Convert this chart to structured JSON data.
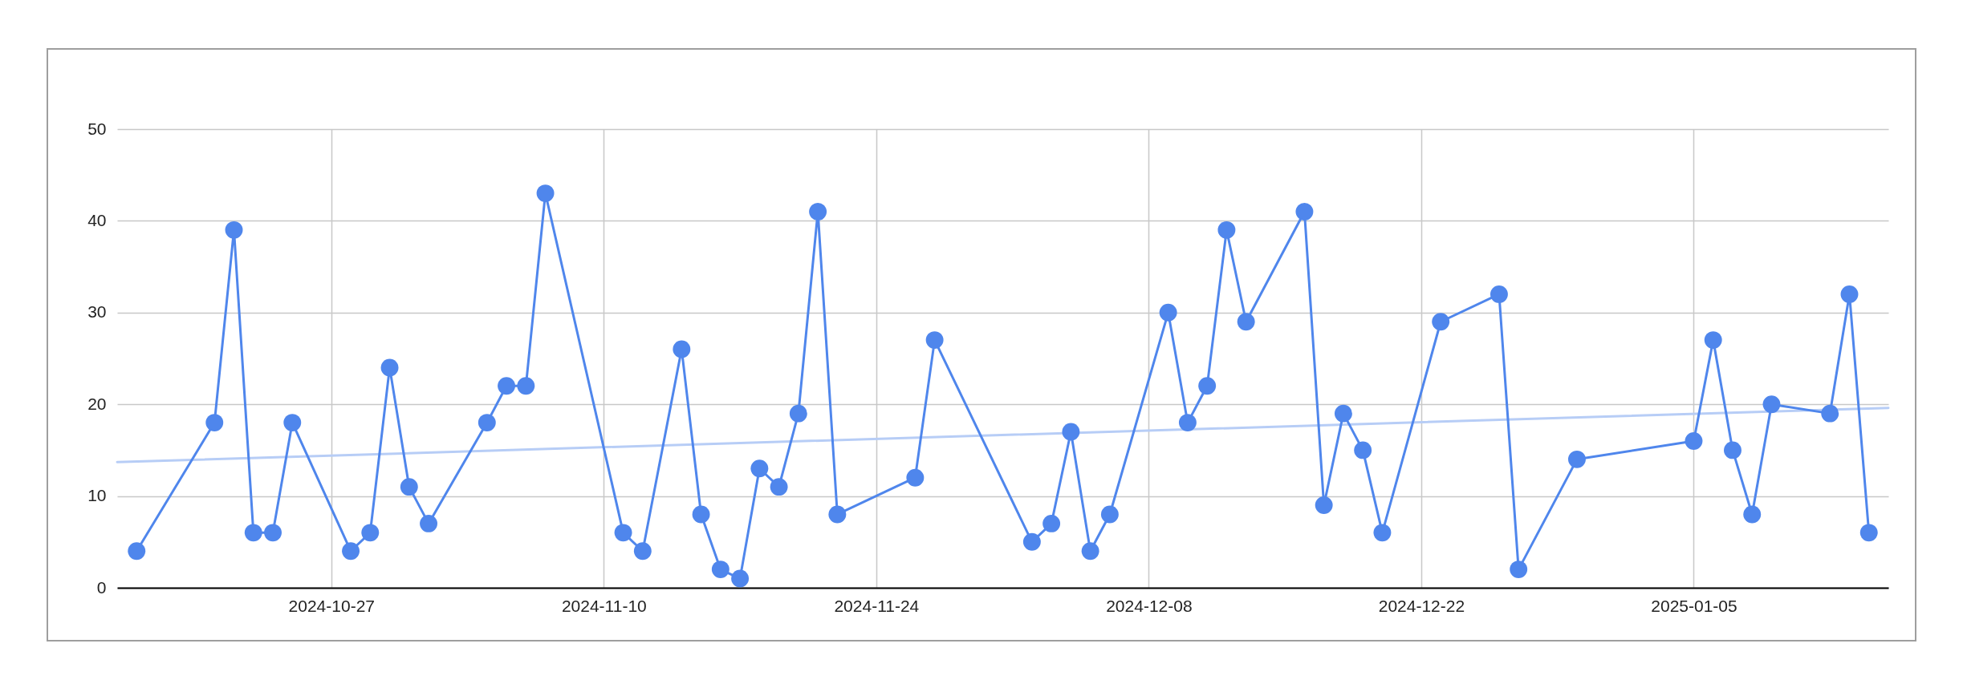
{
  "chart_data": {
    "type": "line",
    "xlim": [
      "2024-10-16",
      "2025-01-15"
    ],
    "xticks": [
      "2024-10-27",
      "2024-11-10",
      "2024-11-24",
      "2024-12-08",
      "2024-12-22",
      "2025-01-05"
    ],
    "ylim": [
      0,
      50
    ],
    "yticks": [
      0,
      10,
      20,
      30,
      40,
      50
    ],
    "grid": true,
    "marker": "circle",
    "line_style": "solid",
    "series": [
      {
        "color": "#4f86ec",
        "x": [
          "2024-10-17",
          "2024-10-21",
          "2024-10-22",
          "2024-10-23",
          "2024-10-24",
          "2024-10-25",
          "2024-10-28",
          "2024-10-29",
          "2024-10-30",
          "2024-10-31",
          "2024-11-01",
          "2024-11-04",
          "2024-11-05",
          "2024-11-06",
          "2024-11-07",
          "2024-11-11",
          "2024-11-12",
          "2024-11-14",
          "2024-11-15",
          "2024-11-16",
          "2024-11-17",
          "2024-11-18",
          "2024-11-19",
          "2024-11-20",
          "2024-11-21",
          "2024-11-22",
          "2024-11-26",
          "2024-11-27",
          "2024-12-02",
          "2024-12-03",
          "2024-12-04",
          "2024-12-05",
          "2024-12-06",
          "2024-12-09",
          "2024-12-10",
          "2024-12-11",
          "2024-12-12",
          "2024-12-13",
          "2024-12-16",
          "2024-12-17",
          "2024-12-18",
          "2024-12-19",
          "2024-12-20",
          "2024-12-23",
          "2024-12-26",
          "2024-12-27",
          "2024-12-30",
          "2025-01-05",
          "2025-01-06",
          "2025-01-07",
          "2025-01-08",
          "2025-01-09",
          "2025-01-12",
          "2025-01-13",
          "2025-01-14"
        ],
        "values": [
          4,
          18,
          39,
          6,
          6,
          18,
          4,
          6,
          24,
          11,
          7,
          18,
          22,
          22,
          43,
          6,
          4,
          26,
          8,
          2,
          1,
          13,
          11,
          19,
          41,
          8,
          12,
          27,
          5,
          7,
          17,
          4,
          8,
          30,
          18,
          22,
          39,
          29,
          41,
          9,
          19,
          15,
          6,
          29,
          32,
          2,
          14,
          16,
          27,
          15,
          8,
          20,
          19,
          32,
          6
        ]
      },
      {
        "type": "line",
        "color": "#b7cdf6",
        "marker": "none",
        "x": [
          "2024-10-16",
          "2025-01-15"
        ],
        "values": [
          13.7,
          19.6
        ]
      }
    ]
  }
}
